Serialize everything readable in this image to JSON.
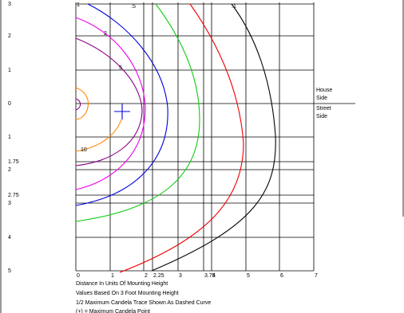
{
  "y_labels": [
    "3",
    "2",
    "1",
    "0",
    "1",
    "1.75",
    "2",
    "2.75",
    "3",
    "4",
    "5"
  ],
  "x_labels": [
    "0",
    "1",
    "2",
    "2.25",
    "3",
    "3.75",
    "4",
    "5",
    "6",
    "7"
  ],
  "side_labels": [
    "House",
    "Side",
    "Street",
    "Side"
  ],
  "contour_labels": [
    ".1",
    ".5",
    "1",
    "2",
    "5",
    "10"
  ],
  "notes": [
    "Distance In Units Of Mounting Height",
    "Values Based On 3 Foot Mounting Height",
    "1/2 Maximum Candela Trace Shown As Dashed Curve",
    "(+) = Maximum Candela Point"
  ]
}
